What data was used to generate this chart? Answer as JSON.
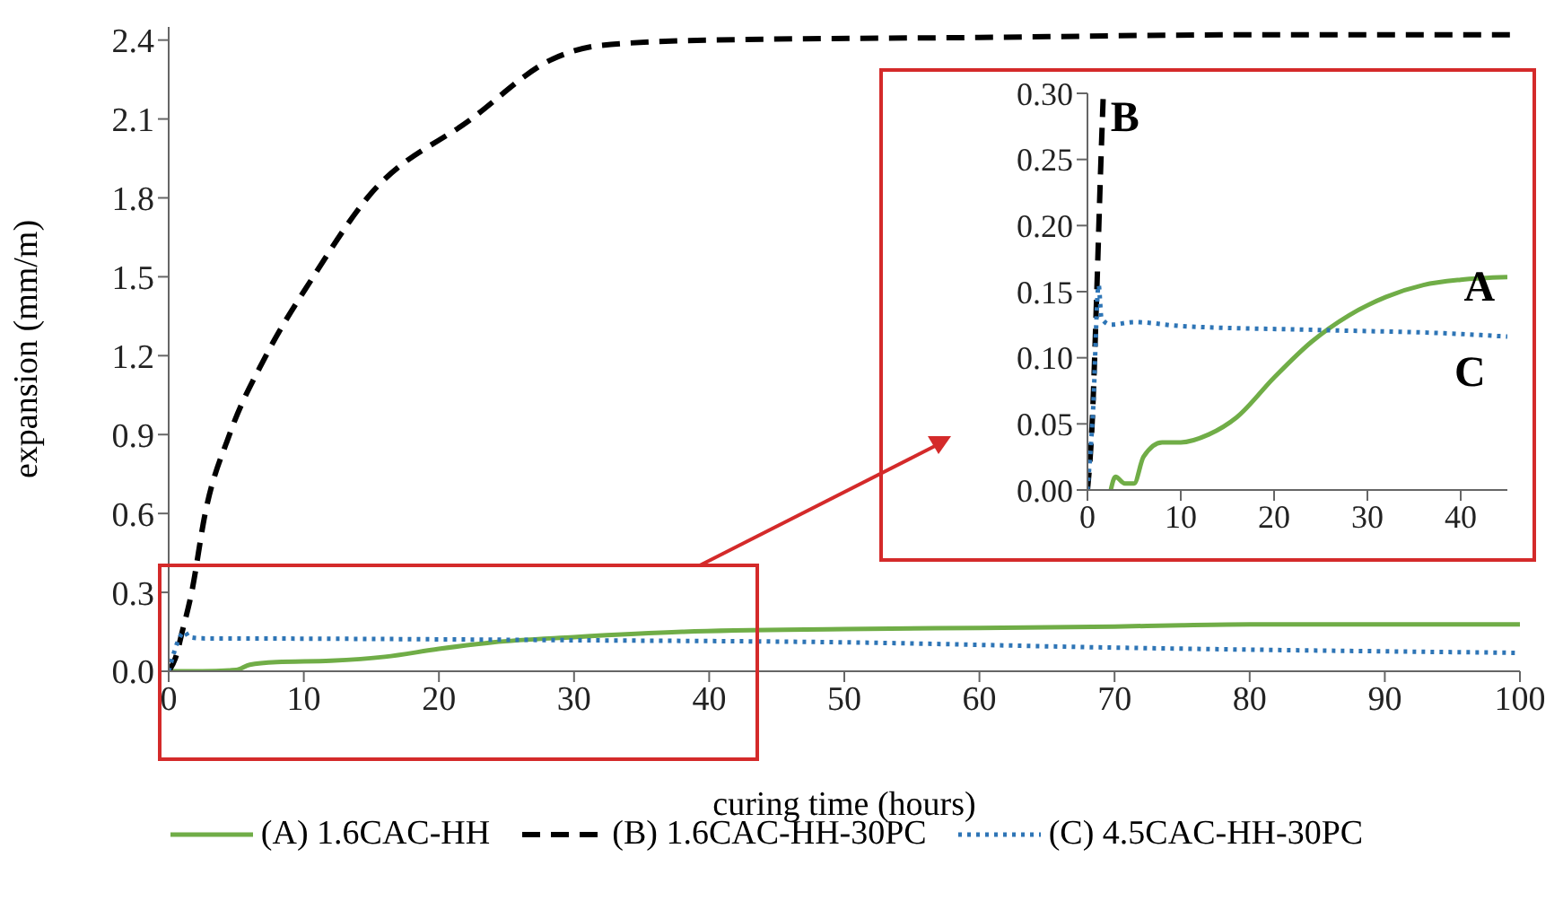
{
  "chart_data": [
    {
      "type": "line",
      "xlabel": "curing time (hours)",
      "ylabel": "expansion (mm/m)",
      "xlim": [
        0,
        100
      ],
      "xticks": [
        0,
        10,
        20,
        30,
        40,
        50,
        60,
        70,
        80,
        90,
        100
      ],
      "ylim": [
        0,
        2.45
      ],
      "yticks": [
        {
          "value": 0,
          "label": "0.0"
        },
        {
          "value": 0.3,
          "label": "0.3"
        },
        {
          "value": 0.6,
          "label": "0.6"
        },
        {
          "value": 0.9,
          "label": "0.9"
        },
        {
          "value": 1.2,
          "label": "1.2"
        },
        {
          "value": 1.5,
          "label": "1.5"
        },
        {
          "value": 1.8,
          "label": "1.8"
        },
        {
          "value": 2.1,
          "label": "2.1"
        },
        {
          "value": 2.4,
          "label": "2.4"
        }
      ],
      "legend": "bottom",
      "marker": "none",
      "series": [
        {
          "name": "(A) 1.6CAC-HH",
          "color": "#70ad47",
          "line_style": "solid",
          "x": [
            0,
            2.5,
            5,
            6,
            8,
            12,
            16,
            20,
            24,
            30,
            38,
            50,
            60,
            70,
            75,
            80,
            90,
            100
          ],
          "values": [
            0,
            0,
            0.005,
            0.025,
            0.035,
            0.04,
            0.055,
            0.085,
            0.11,
            0.13,
            0.15,
            0.16,
            0.165,
            0.17,
            0.175,
            0.178,
            0.178,
            0.178
          ]
        },
        {
          "name": "(B) 1.6CAC-HH-30PC",
          "color": "#000000",
          "line_style": "dashed",
          "x": [
            0,
            0.5,
            1,
            1.7,
            2.7,
            4.5,
            7.2,
            10.7,
            14.7,
            22.4,
            28.5,
            32,
            40,
            60,
            80,
            100
          ],
          "values": [
            0,
            0.05,
            0.15,
            0.3,
            0.6,
            0.9,
            1.2,
            1.5,
            1.8,
            2.1,
            2.33,
            2.38,
            2.4,
            2.41,
            2.42,
            2.42
          ]
        },
        {
          "name": "(C) 4.5CAC-HH-30PC",
          "color": "#2e75b6",
          "line_style": "dotted",
          "x": [
            0,
            1.2,
            1.5,
            2.5,
            10,
            30,
            50,
            70,
            100
          ],
          "values": [
            0,
            0.15,
            0.13,
            0.125,
            0.124,
            0.118,
            0.11,
            0.09,
            0.07
          ]
        }
      ]
    },
    {
      "type": "line",
      "xlim": [
        0,
        45
      ],
      "xticks": [
        0,
        10,
        20,
        30,
        40
      ],
      "ylim": [
        0,
        0.3
      ],
      "yticks": [
        {
          "value": 0,
          "label": "0.00"
        },
        {
          "value": 0.05,
          "label": "0.05"
        },
        {
          "value": 0.1,
          "label": "0.10"
        },
        {
          "value": 0.15,
          "label": "0.15"
        },
        {
          "value": 0.2,
          "label": "0.20"
        },
        {
          "value": 0.25,
          "label": "0.25"
        },
        {
          "value": 0.3,
          "label": "0.30"
        }
      ],
      "marker": "none",
      "annotations": [
        {
          "text": "A",
          "x": 42,
          "y": 0.155
        },
        {
          "text": "B",
          "x": 1.7,
          "y": 0.3
        },
        {
          "text": "C",
          "x": 41,
          "y": 0.118
        }
      ],
      "series": [
        {
          "color": "#70ad47",
          "line_style": "solid",
          "x": [
            2.5,
            3,
            4,
            5,
            6,
            8,
            10,
            13,
            16,
            20,
            24,
            28,
            32,
            36,
            40,
            45
          ],
          "values": [
            0,
            0.01,
            0.005,
            0.005,
            0.025,
            0.036,
            0.036,
            0.042,
            0.055,
            0.085,
            0.112,
            0.132,
            0.146,
            0.155,
            0.159,
            0.161
          ]
        },
        {
          "color": "#000000",
          "line_style": "dashed",
          "x": [
            0,
            0.5,
            1,
            1.4,
            1.7
          ],
          "values": [
            0,
            0.05,
            0.15,
            0.24,
            0.3
          ]
        },
        {
          "color": "#2e75b6",
          "line_style": "dotted",
          "x": [
            0,
            0.6,
            1.2,
            1.5,
            2.5,
            5,
            10,
            25,
            40,
            45
          ],
          "values": [
            0,
            0.06,
            0.155,
            0.13,
            0.125,
            0.127,
            0.124,
            0.121,
            0.118,
            0.116
          ]
        }
      ]
    }
  ]
}
